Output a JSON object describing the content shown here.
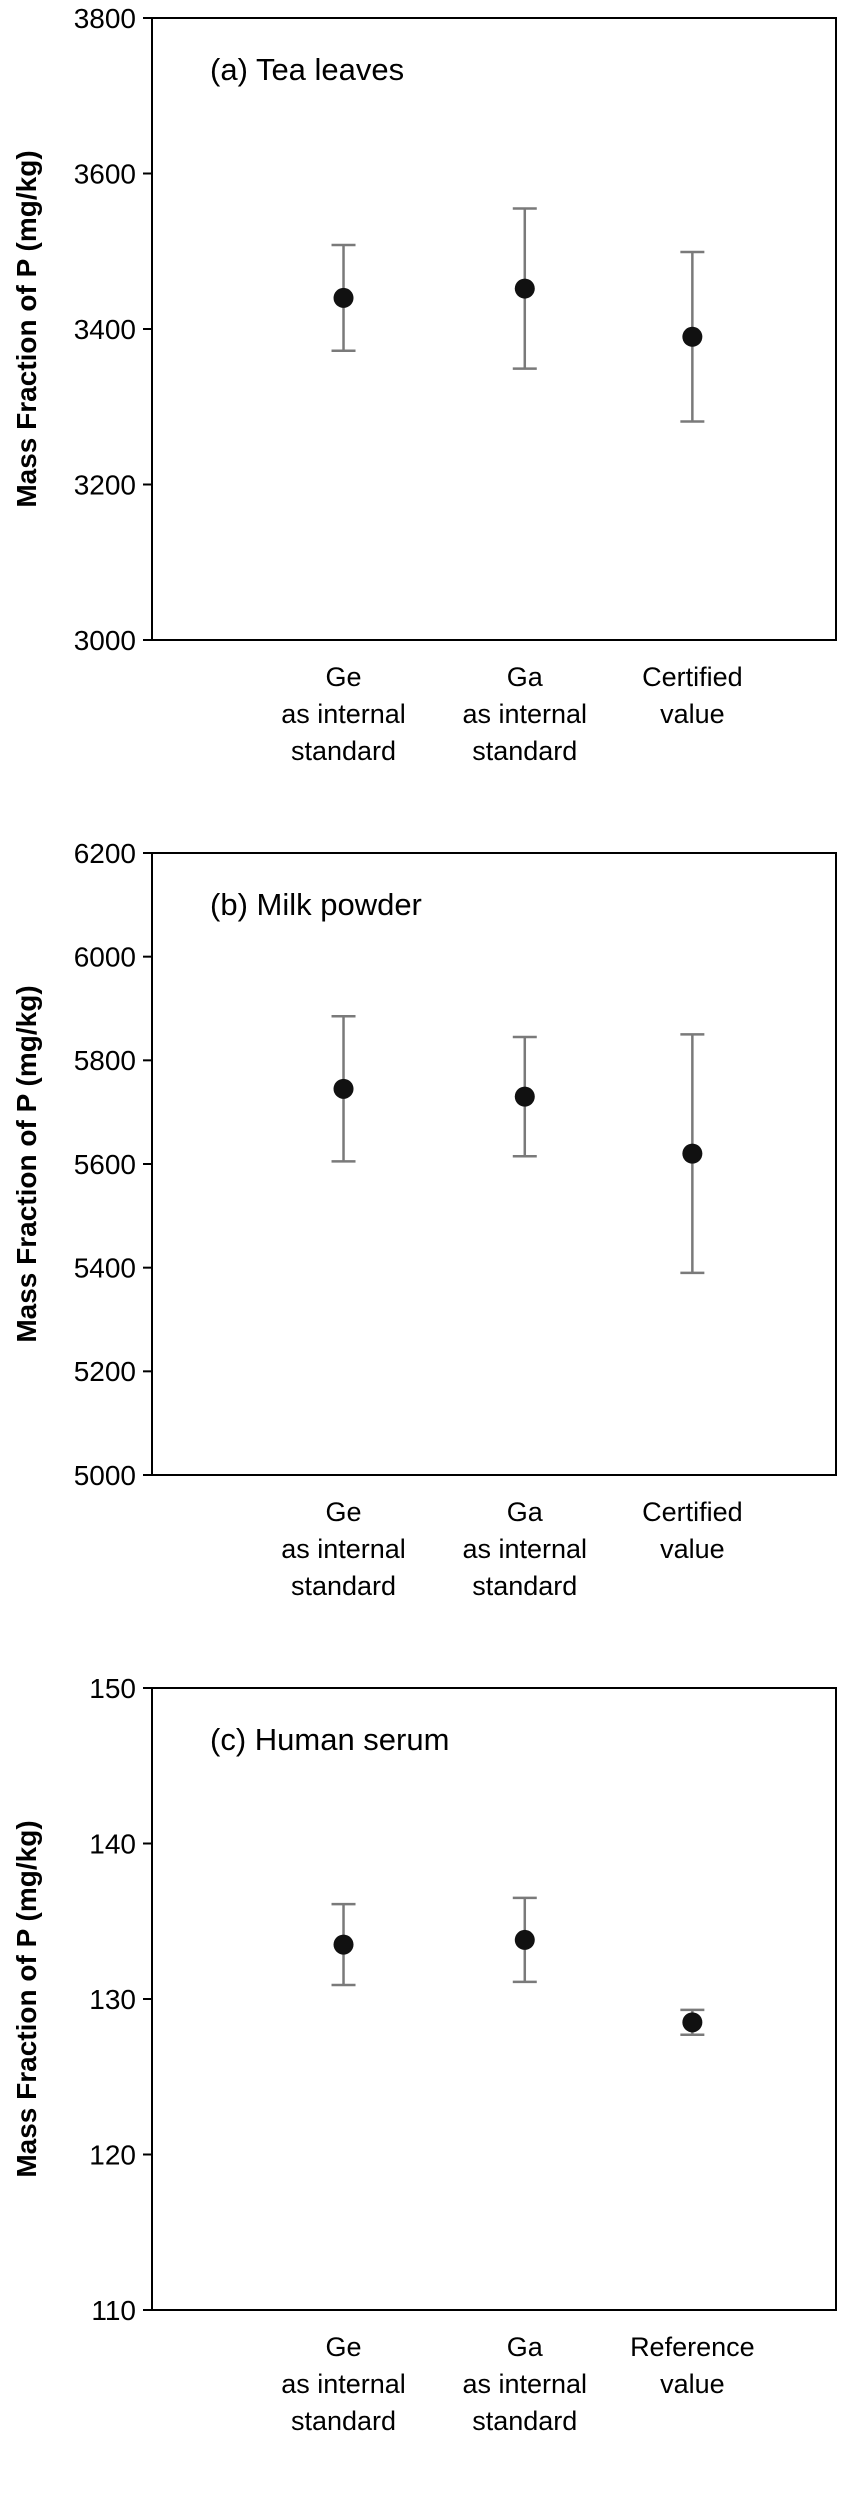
{
  "page": {
    "background": "#ffffff"
  },
  "chart_data": [
    {
      "type": "scatter",
      "title": "(a) Tea leaves",
      "ylabel": "Mass Fraction of P (mg/kg)",
      "ylim": [
        3000,
        3800
      ],
      "ytick_step": 200,
      "grid": false,
      "legend": false,
      "categories": [
        "Ge\nas internal\nstandard",
        "Ga\nas internal\nstandard",
        "Certified\nvalue"
      ],
      "values": [
        3440,
        3452,
        3390
      ],
      "errors": [
        68,
        103,
        109
      ],
      "marker_color": "#111111",
      "error_color": "#7a7a7a",
      "border_color": "#000000"
    },
    {
      "type": "scatter",
      "title": "(b) Milk powder",
      "ylabel": "Mass Fraction of P (mg/kg)",
      "ylim": [
        5000,
        6200
      ],
      "ytick_step": 200,
      "grid": false,
      "legend": false,
      "categories": [
        "Ge\nas internal\nstandard",
        "Ga\nas internal\nstandard",
        "Certified\nvalue"
      ],
      "values": [
        5745,
        5730,
        5620
      ],
      "errors": [
        140,
        115,
        230
      ],
      "marker_color": "#111111",
      "error_color": "#7a7a7a",
      "border_color": "#000000"
    },
    {
      "type": "scatter",
      "title": "(c) Human serum",
      "ylabel": "Mass Fraction of P (mg/kg)",
      "ylim": [
        110,
        150
      ],
      "ytick_step": 10,
      "grid": false,
      "legend": false,
      "categories": [
        "Ge\nas internal\nstandard",
        "Ga\nas internal\nstandard",
        "Reference\nvalue"
      ],
      "values": [
        133.5,
        133.8,
        128.5
      ],
      "errors": [
        2.6,
        2.7,
        0.8
      ],
      "marker_color": "#111111",
      "error_color": "#7a7a7a",
      "border_color": "#000000"
    }
  ]
}
